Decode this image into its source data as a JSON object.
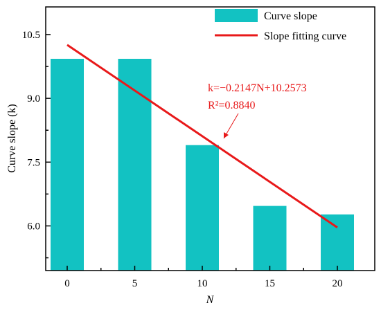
{
  "chart_data": {
    "type": "bar",
    "categories": [
      "0",
      "5",
      "10",
      "15",
      "20"
    ],
    "series": [
      {
        "name": "Curve slope",
        "values": [
          9.93,
          9.93,
          7.9,
          6.47,
          6.27
        ],
        "color": "#12c2c2"
      }
    ],
    "fit_line": {
      "name": "Slope fitting curve",
      "slope": -0.2147,
      "intercept": 10.2573,
      "x_range": [
        0,
        20
      ],
      "color": "#e8191a"
    },
    "xlabel": "N",
    "ylabel": "Curve slope (k)",
    "ylim": [
      4.95,
      11.15
    ],
    "yticks": [
      "6.0",
      "7.5",
      "9.0",
      "10.5"
    ],
    "legend_position": "top-right",
    "grid": false,
    "annotation": {
      "equation": "k=−0.2147N+10.2573",
      "r2": "R²=0.8840",
      "target_x": 10
    }
  }
}
